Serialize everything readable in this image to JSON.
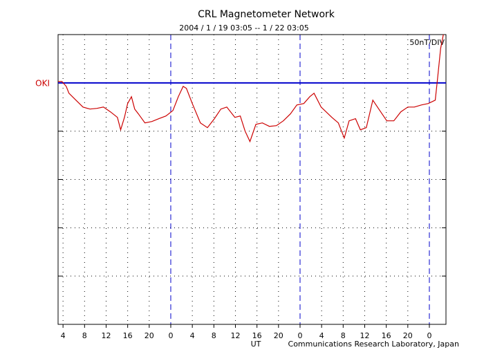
{
  "chart_data": {
    "type": "line",
    "title": "CRL Magnetometer Network",
    "subtitle": "2004 / 1 / 19  03:05 -- 1 / 22  03:05",
    "scale_label": "50nT/DIV",
    "x_label": "UT",
    "credit": "Communications Research Laboratory, Japan",
    "xlim": [
      3.083,
      75.083
    ],
    "xticks": [
      4,
      8,
      12,
      16,
      20,
      {
        "value": 24,
        "label": "0"
      },
      {
        "value": 28,
        "label": "4"
      },
      {
        "value": 32,
        "label": "8"
      },
      {
        "value": 36,
        "label": "12"
      },
      {
        "value": 40,
        "label": "16"
      },
      {
        "value": 44,
        "label": "20"
      },
      {
        "value": 48,
        "label": "0"
      },
      {
        "value": 52,
        "label": "4"
      },
      {
        "value": 56,
        "label": "8"
      },
      {
        "value": 60,
        "label": "12"
      },
      {
        "value": 64,
        "label": "16"
      },
      {
        "value": 68,
        "label": "20"
      },
      {
        "value": 72,
        "label": "0"
      }
    ],
    "ylim": [
      -250,
      50
    ],
    "yticks": [
      -200,
      -150,
      -100,
      -50,
      0
    ],
    "grid": true,
    "baseline": 0,
    "baseline_color": "#0000cc",
    "series": [
      {
        "name": "OKI",
        "color": "#cc0000",
        "x": [
          3.1,
          3.8,
          4.6,
          5.1,
          6.4,
          7.7,
          9.0,
          10.3,
          11.5,
          12.8,
          14.1,
          14.7,
          15.4,
          16.0,
          16.7,
          17.3,
          18.0,
          19.2,
          20.5,
          21.8,
          23.1,
          24.4,
          25.4,
          26.3,
          26.9,
          28.0,
          29.5,
          30.8,
          32.1,
          33.3,
          34.4,
          35.9,
          36.9,
          37.8,
          38.7,
          39.8,
          41.0,
          42.3,
          43.6,
          44.9,
          46.2,
          47.4,
          48.7,
          49.8,
          50.6,
          51.9,
          53.9,
          55.1,
          56.2,
          57.1,
          58.3,
          59.2,
          60.3,
          61.5,
          62.8,
          64.1,
          65.4,
          66.7,
          68.0,
          69.2,
          70.5,
          71.8,
          73.1,
          73.5,
          74.1,
          74.6
        ],
        "values": [
          1.4,
          1.4,
          -3.6,
          -10.7,
          -17.9,
          -25,
          -27.1,
          -26.4,
          -25,
          -30,
          -35.7,
          -48.6,
          -35.7,
          -21.4,
          -14.3,
          -27.1,
          -32.1,
          -41.4,
          -40,
          -37.1,
          -34.3,
          -28.6,
          -14.3,
          -3.6,
          -5.7,
          -21.4,
          -41.4,
          -46.4,
          -37.1,
          -27.1,
          -25,
          -35.7,
          -34.3,
          -50,
          -60.7,
          -42.9,
          -41.4,
          -45,
          -44.3,
          -39.3,
          -32.1,
          -22.9,
          -21.4,
          -14.3,
          -10.7,
          -25,
          -35.7,
          -41.4,
          -57.1,
          -39.3,
          -37.1,
          -48.6,
          -46.4,
          -17.9,
          -28.6,
          -39.3,
          -39.3,
          -30,
          -25,
          -25,
          -22.9,
          -21.4,
          -17.9,
          3.6,
          35.7,
          50
        ]
      }
    ]
  }
}
